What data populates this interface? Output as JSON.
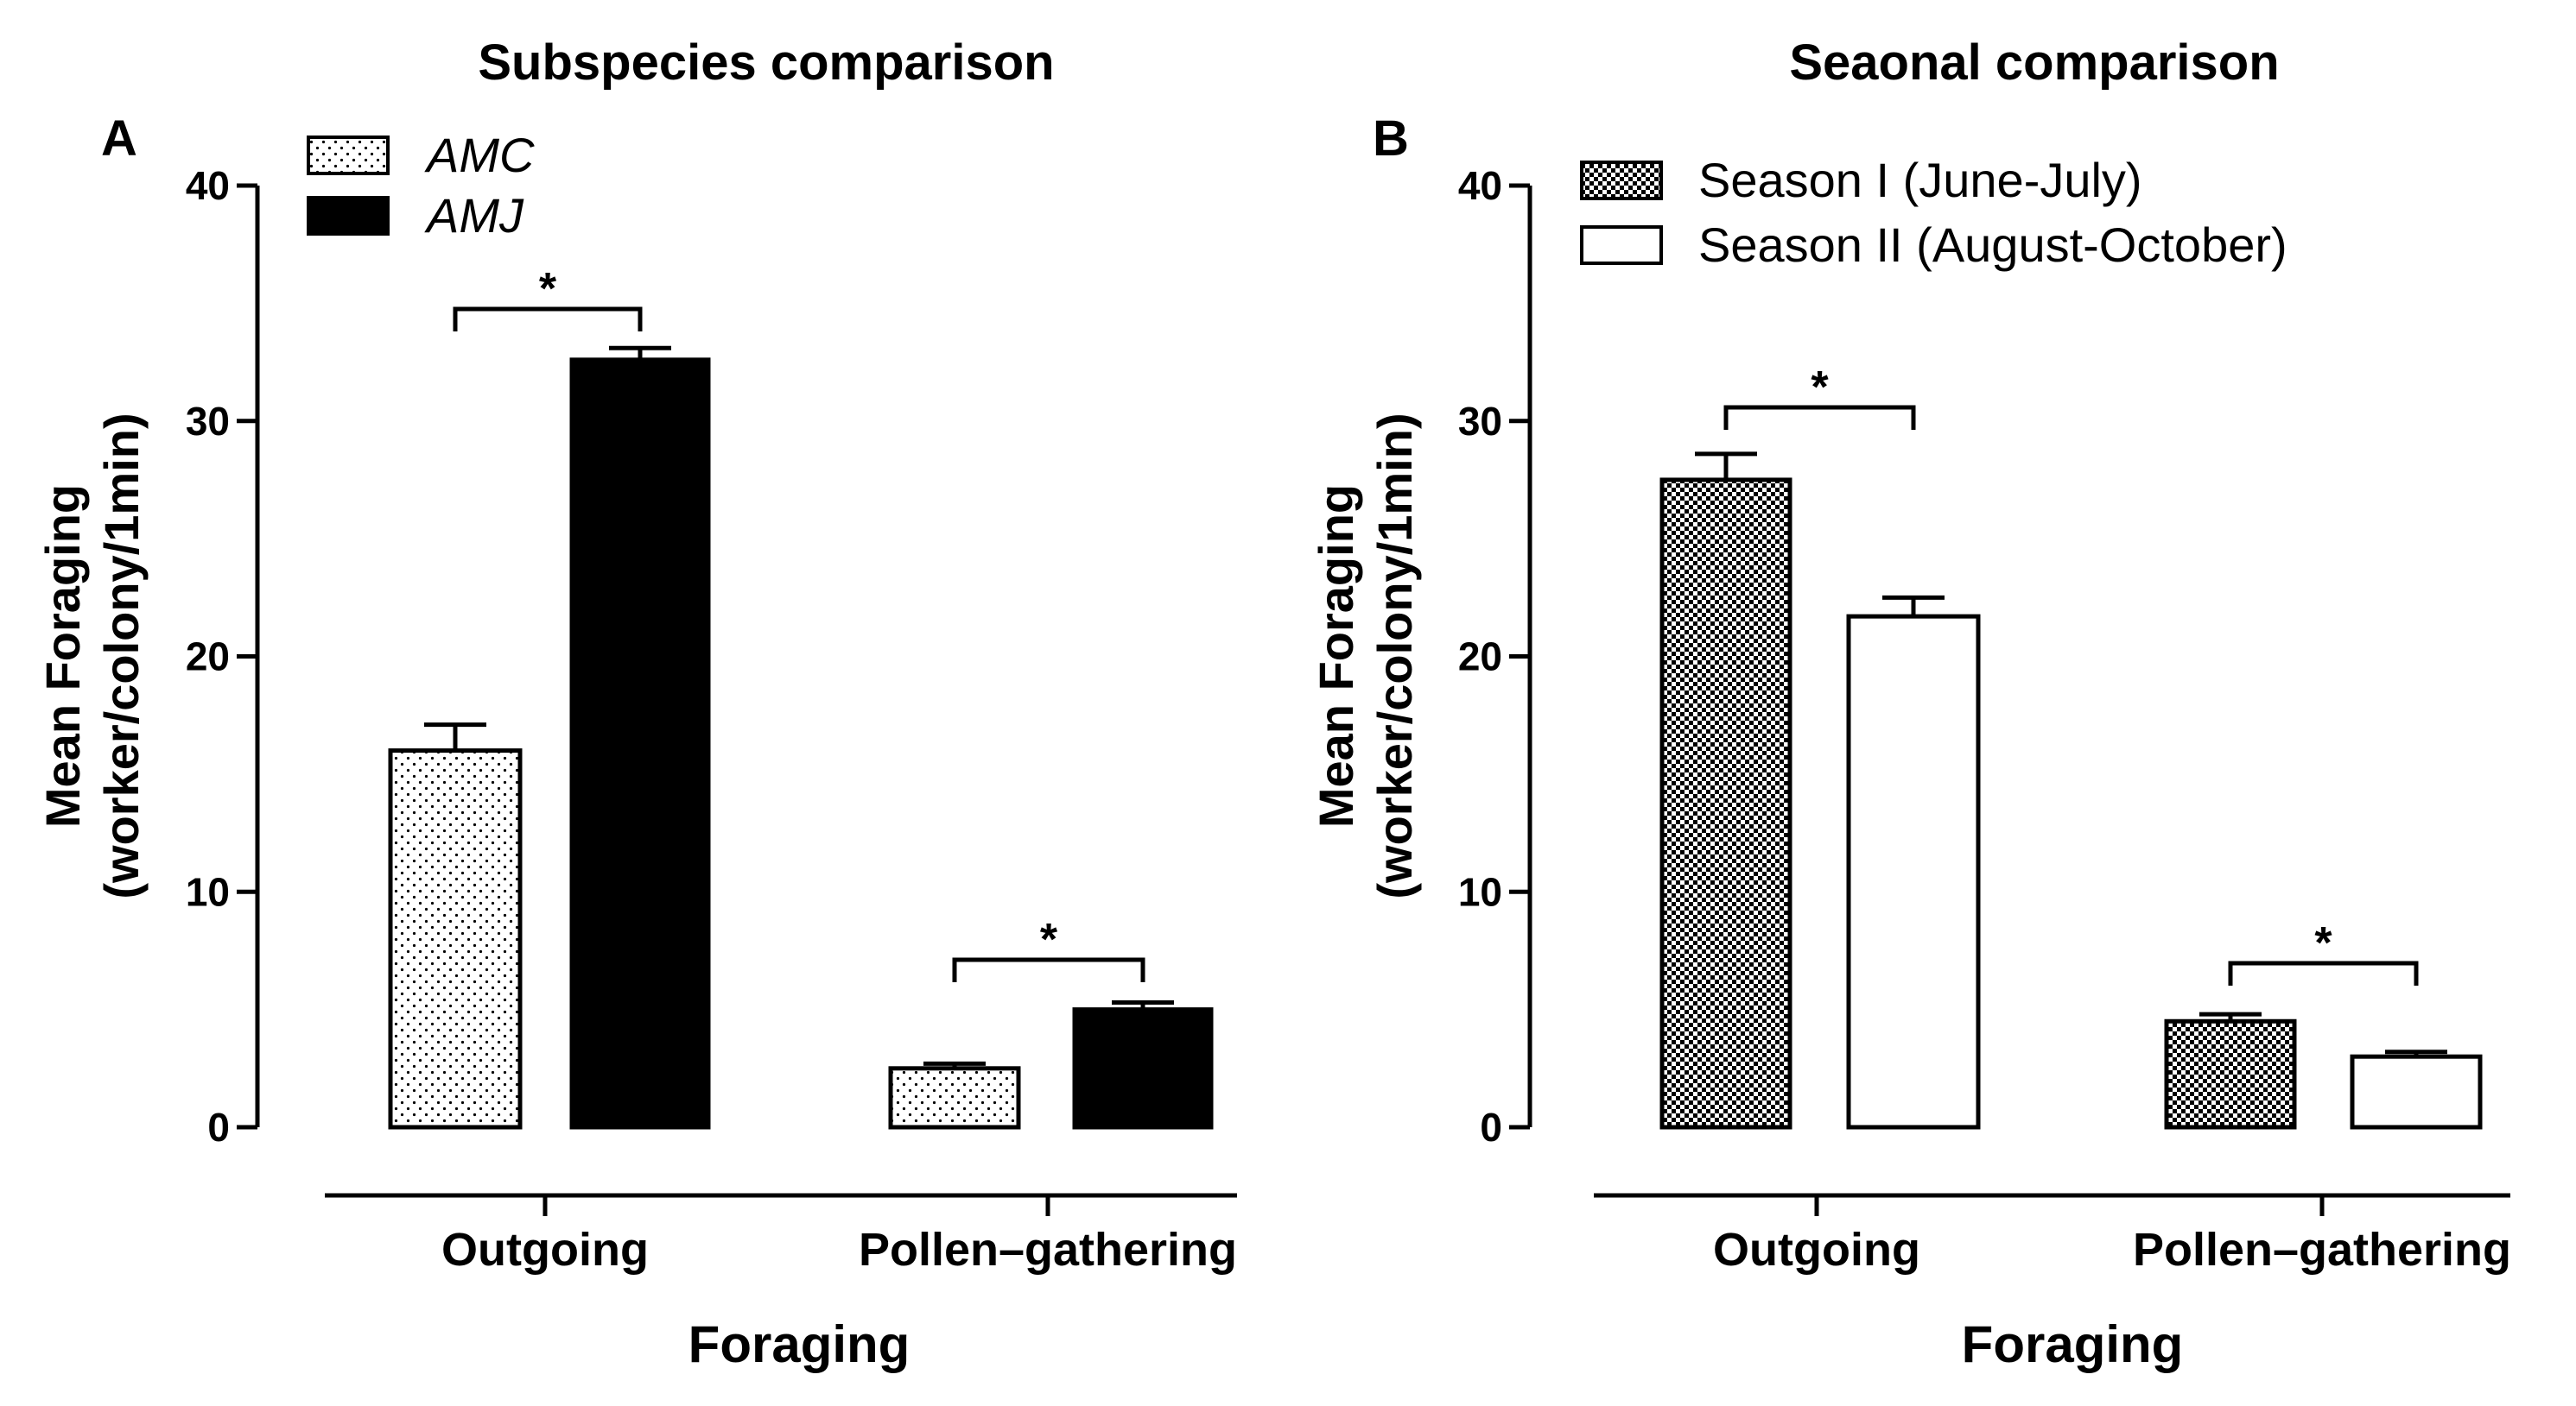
{
  "chart_data": [
    {
      "type": "bar",
      "panel": "A",
      "title": "Subspecies comparison",
      "xlabel": "Foraging",
      "ylabel_line1": "Mean Foraging",
      "ylabel_line2": "(worker/colony/1min)",
      "ylim": [
        0,
        40
      ],
      "yticks": [
        "0",
        "10",
        "20",
        "30",
        "40"
      ],
      "categories": [
        "Outgoing",
        "Pollen–gathering"
      ],
      "series": [
        {
          "name": "AMC",
          "pattern": "dots",
          "values": [
            16.0,
            2.5
          ],
          "errors": [
            1.1,
            0.2
          ]
        },
        {
          "name": "AMJ",
          "pattern": "solid",
          "values": [
            32.6,
            5.0
          ],
          "errors": [
            0.5,
            0.3
          ]
        }
      ],
      "significance": [
        "*",
        "*"
      ],
      "legend_italic": true
    },
    {
      "type": "bar",
      "panel": "B",
      "title": "Seaonal comparison",
      "xlabel": "Foraging",
      "ylabel_line1": "Mean Foraging",
      "ylabel_line2": "(worker/colony/1min)",
      "ylim": [
        0,
        40
      ],
      "yticks": [
        "0",
        "10",
        "20",
        "30",
        "40"
      ],
      "categories": [
        "Outgoing",
        "Pollen–gathering"
      ],
      "series": [
        {
          "name": "Season I (June-July)",
          "pattern": "checker",
          "values": [
            27.5,
            4.5
          ],
          "errors": [
            1.1,
            0.3
          ]
        },
        {
          "name": "Season II (August-October)",
          "pattern": "open",
          "values": [
            21.7,
            3.0
          ],
          "errors": [
            0.8,
            0.2
          ]
        }
      ],
      "significance": [
        "*",
        "*"
      ],
      "legend_italic": false
    }
  ],
  "colors": {
    "ink": "#000000",
    "background": "#ffffff"
  }
}
